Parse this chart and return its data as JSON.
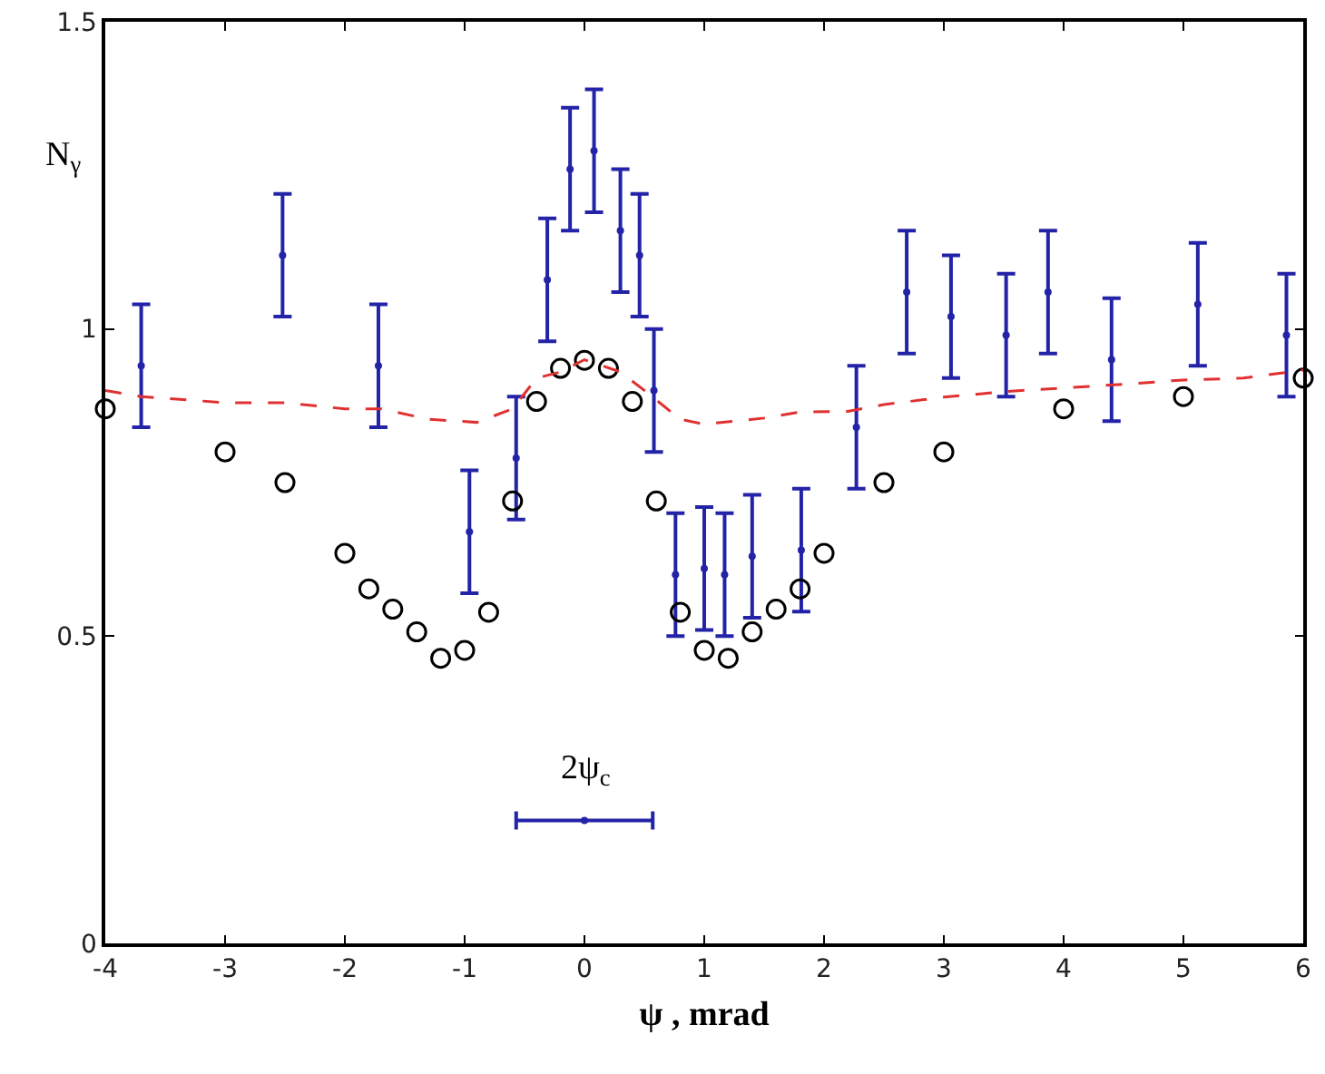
{
  "chart_data": {
    "type": "scatter",
    "xlabel": "ψ , mrad",
    "ylabel": "N$_{γ}$",
    "xlim": [
      -4,
      6
    ],
    "xticks": [
      -4,
      -3,
      -2,
      -1,
      0,
      1,
      2,
      3,
      4,
      5,
      6
    ],
    "ylim": [
      0,
      1.5
    ],
    "yticks": [
      0,
      0.5,
      1,
      1.5
    ],
    "grid": false,
    "annotations": [
      {
        "text": "2ψ$_{c}$",
        "x": 0,
        "y": 0.2
      }
    ],
    "series": [
      {
        "type": "scatter",
        "marker": "circle",
        "color": "#2323a8",
        "x": [
          -3.7,
          -2.52,
          -1.72,
          -0.96,
          -0.57,
          -0.31,
          -0.12,
          0.08,
          0.3,
          0.46,
          0.58,
          0.76,
          1.0,
          1.17,
          1.4,
          1.81,
          2.27,
          2.69,
          3.06,
          3.52,
          3.87,
          4.4,
          5.12,
          5.86
        ],
        "values": [
          0.94,
          1.12,
          0.94,
          0.67,
          0.79,
          1.08,
          1.26,
          1.29,
          1.16,
          1.12,
          0.9,
          0.6,
          0.61,
          0.6,
          0.63,
          0.64,
          0.84,
          1.06,
          1.02,
          0.99,
          1.06,
          0.95,
          1.04,
          0.99
        ],
        "errors": [
          0.1,
          0.1,
          0.1,
          0.1,
          0.1,
          0.1,
          0.1,
          0.1,
          0.1,
          0.1,
          0.1,
          0.1,
          0.1,
          0.1,
          0.1,
          0.1,
          0.1,
          0.1,
          0.1,
          0.1,
          0.1,
          0.1,
          0.1,
          0.1
        ]
      },
      {
        "type": "scatter",
        "marker": "circle",
        "color": "#000000",
        "x": [
          -4,
          -3,
          -2.5,
          -2,
          -1.8,
          -1.6,
          -1.4,
          -1.2,
          -1,
          -0.8,
          -0.6,
          -0.4,
          -0.2,
          0,
          0.2,
          0.4,
          0.6,
          0.8,
          1,
          1.2,
          1.4,
          1.6,
          1.8,
          2,
          2.5,
          3,
          4,
          5,
          6
        ],
        "values": [
          0.87,
          0.8,
          0.75,
          0.635,
          0.577,
          0.544,
          0.507,
          0.464,
          0.477,
          0.539,
          0.72,
          0.882,
          0.936,
          0.949,
          0.936,
          0.882,
          0.72,
          0.539,
          0.477,
          0.464,
          0.507,
          0.544,
          0.577,
          0.635,
          0.75,
          0.8,
          0.87,
          0.89,
          0.92
        ]
      },
      {
        "type": "line",
        "marker": "none",
        "line_style": "dashed",
        "color": "#e03030",
        "x": [
          -4,
          -3.7,
          -3,
          -2.5,
          -2,
          -1.7,
          -1.3,
          -0.9,
          -0.6,
          -0.4,
          -0.2,
          0,
          0.3,
          0.5,
          0.8,
          1,
          1.5,
          1.8,
          2.2,
          2.5,
          3,
          3.5,
          4,
          4.5,
          5,
          5.5,
          6
        ],
        "values": [
          0.9,
          0.89,
          0.88,
          0.88,
          0.87,
          0.87,
          0.853,
          0.848,
          0.87,
          0.92,
          0.93,
          0.95,
          0.93,
          0.9,
          0.853,
          0.845,
          0.855,
          0.865,
          0.866,
          0.877,
          0.889,
          0.898,
          0.904,
          0.91,
          0.917,
          0.92,
          0.933
        ]
      },
      {
        "type": "scatter",
        "marker": "circle",
        "color": "#2323a8",
        "x": [
          0
        ],
        "values": [
          0.2
        ],
        "xerrors": [
          0.57
        ]
      }
    ]
  }
}
